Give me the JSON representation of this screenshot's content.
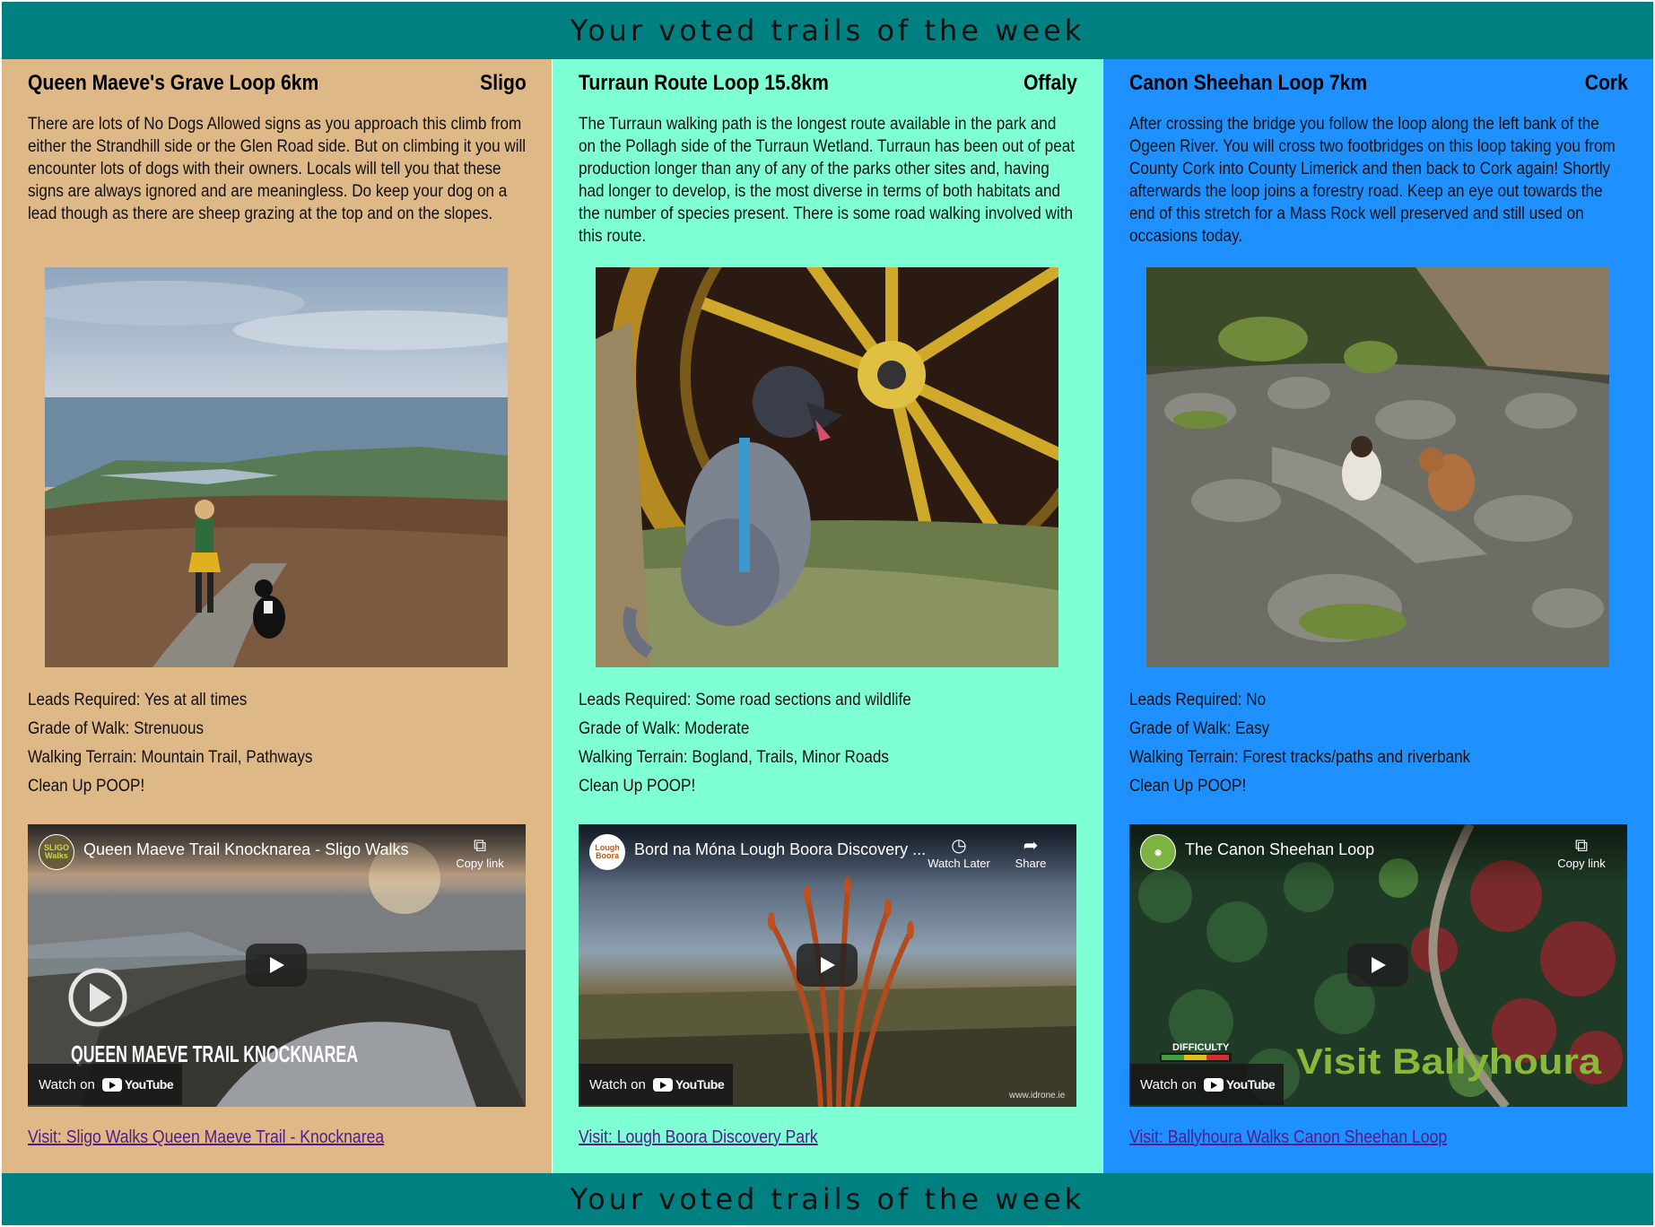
{
  "banner": {
    "title": "Your voted trails of the week"
  },
  "colors": {
    "banner": "#008080",
    "col1": "#DEB887",
    "col2": "#7FFFD4",
    "col3": "#1E90FF",
    "link": "#551A8B"
  },
  "trails": [
    {
      "name": "Queen Maeve's Grave Loop 6km",
      "county": "Sligo",
      "description": "There are lots of No Dogs Allowed signs as you approach this climb from either the Strandhill side or the Glen Road side. But on climbing it you will encounter lots of dogs with their owners. Locals will tell you that these signs are always ignored and are meaningless. Do keep your dog on a lead though as there are sheep grazing at the top and on the slopes.",
      "leads": "Leads Required: Yes at all times",
      "grade": "Grade of Walk: Strenuous",
      "terrain": "Walking Terrain: Mountain Trail, Pathways",
      "cleanup": "Clean Up POOP!",
      "video": {
        "title": "Queen Maeve Trail Knocknarea - Sligo Walks",
        "channel": "SLIGO Walks",
        "action": "Copy link",
        "overlay": "QUEEN MAEVE TRAIL KNOCKNAREA",
        "watch": "Watch on",
        "yt": "YouTube"
      },
      "link": "Visit: Sligo Walks Queen Maeve Trail - Knocknarea"
    },
    {
      "name": "Turraun Route Loop 15.8km",
      "county": "Offaly",
      "description": "The Turraun walking path is the longest route available in the park and on the Pollagh side of the Turraun Wetland. Turraun has been out of peat production longer than any of any of the parks other sites and, having had longer to develop, is the most diverse in terms of both habitats and the number of species present. There is some road walking involved with this route.",
      "leads": "Leads Required: Some road sections and wildlife",
      "grade": "Grade of Walk: Moderate",
      "terrain": "Walking Terrain: Bogland, Trails, Minor Roads",
      "cleanup": "Clean Up POOP!",
      "video": {
        "title": "Bord na Móna Lough Boora Discovery ...",
        "channel": "Lough Boora",
        "action1": "Watch Later",
        "action2": "Share",
        "credit": "www.idrone.ie",
        "watch": "Watch on",
        "yt": "YouTube"
      },
      "link": "Visit: Lough Boora Discovery Park"
    },
    {
      "name": "Canon Sheehan Loop 7km",
      "county": "Cork",
      "description": "After crossing the bridge you follow the loop along the left bank of the Ogeen River. You will cross two footbridges on this loop taking you from County Cork into County Limerick and then back to Cork again! Shortly afterwards the loop joins a forestry road. Keep an eye out towards the end of this stretch for a Mass Rock well preserved and still used on occasions today.",
      "leads": "Leads Required: No",
      "grade": "Grade of Walk: Easy",
      "terrain": "Walking Terrain: Forest tracks/paths and riverbank",
      "cleanup": "Clean Up POOP!",
      "video": {
        "title": "The Canon Sheehan Loop",
        "action": "Copy link",
        "overlay": "Visit Ballyhoura",
        "badge": "DIFFICULTY",
        "watch": "Watch on",
        "yt": "YouTube"
      },
      "link": "Visit: Ballyhoura Walks Canon Sheehan Loop"
    }
  ]
}
